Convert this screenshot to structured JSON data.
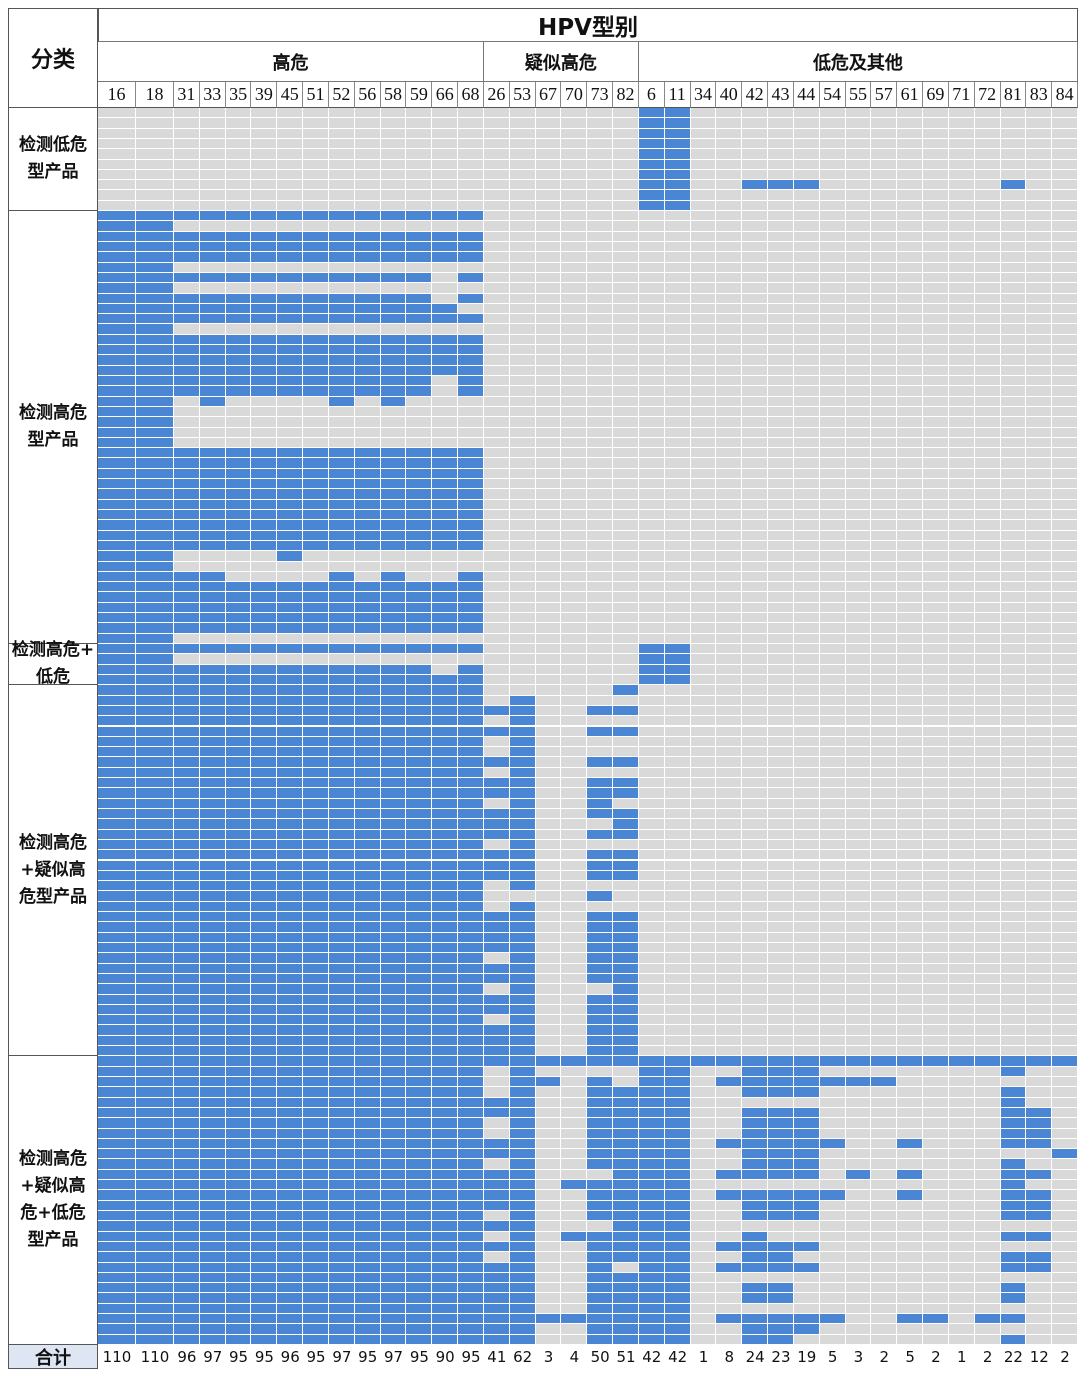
{
  "chart_data": {
    "type": "heatmap",
    "title": "HPV型别",
    "corner_label": "分类",
    "total_label": "合计",
    "colors": {
      "filled": "#4a86d4",
      "empty": "#d9d9d9"
    },
    "groups": [
      {
        "label": "高危",
        "types": [
          "16",
          "18",
          "31",
          "33",
          "35",
          "39",
          "45",
          "51",
          "52",
          "56",
          "58",
          "59",
          "66",
          "68"
        ]
      },
      {
        "label": "疑似高危",
        "types": [
          "26",
          "53",
          "67",
          "70",
          "73",
          "82"
        ]
      },
      {
        "label": "低危及其他",
        "types": [
          "6",
          "11",
          "34",
          "40",
          "42",
          "43",
          "44",
          "54",
          "55",
          "57",
          "61",
          "69",
          "71",
          "72",
          "81",
          "83",
          "84"
        ]
      }
    ],
    "columns": [
      "16",
      "18",
      "31",
      "33",
      "35",
      "39",
      "45",
      "51",
      "52",
      "56",
      "58",
      "59",
      "66",
      "68",
      "26",
      "53",
      "67",
      "70",
      "73",
      "82",
      "6",
      "11",
      "34",
      "40",
      "42",
      "43",
      "44",
      "54",
      "55",
      "57",
      "61",
      "69",
      "71",
      "72",
      "81",
      "83",
      "84"
    ],
    "totals": [
      "110",
      "110",
      "96",
      "97",
      "95",
      "95",
      "96",
      "95",
      "97",
      "95",
      "97",
      "95",
      "90",
      "95",
      "41",
      "62",
      "3",
      "4",
      "50",
      "51",
      "42",
      "42",
      "1",
      "8",
      "24",
      "23",
      "19",
      "5",
      "3",
      "2",
      "5",
      "2",
      "1",
      "2",
      "22",
      "12",
      "2"
    ],
    "categories": [
      {
        "label": "检测低危\n型产品",
        "rows": [
          "00000000000000|000000|11000000000000000",
          "00000000000000|000000|11000000000000000",
          "00000000000000|000000|11000000000000000",
          "00000000000000|000000|11000000000000000",
          "00000000000000|000000|11000000000000000",
          "00000000000000|000000|11000000000000000",
          "00000000000000|000000|11000000000000000",
          "00000000000000|000000|11001110000000100",
          "00000000000000|000000|11000000000000000",
          "00000000000000|000000|11000000000000000"
        ]
      },
      {
        "label": "检测高危\n型产品",
        "rows": [
          "11111111111111|000000|00000000000000000",
          "11000000000000|000000|00000000000000000",
          "11111111111111|000000|00000000000000000",
          "11111111111111|000000|00000000000000000",
          "11111111111111|000000|00000000000000000",
          "11000000000000|000000|00000000000000000",
          "11111111111101|000000|00000000000000000",
          "11000000000000|000000|00000000000000000",
          "11111111111101|000000|00000000000000000",
          "11111111111110|000000|00000000000000000",
          "11111111111111|000000|00000000000000000",
          "11000000000000|000000|00000000000000000",
          "11111111111111|000000|00000000000000000",
          "11111111111111|000000|00000000000000000",
          "11111111111111|000000|00000000000000000",
          "11111111111111|000000|00000000000000000",
          "11111111111101|000000|00000000000000000",
          "11111111111101|000000|00000000000000000",
          "11010000101000|000000|00000000000000000",
          "11000000000000|000000|00000000000000000",
          "11000000000000|000000|00000000000000000",
          "11000000000000|000000|00000000000000000",
          "11000000000000|000000|00000000000000000",
          "11111111111111|000000|00000000000000000",
          "11111111111111|000000|00000000000000000",
          "11111111111111|000000|00000000000000000",
          "11111111111111|000000|00000000000000000",
          "11111111111111|000000|00000000000000000",
          "11111111111111|000000|00000000000000000",
          "11111111111111|000000|00000000000000000",
          "11111111111111|000000|00000000000000000",
          "11111111111111|000000|00000000000000000",
          "11111111111111|000000|00000000000000000",
          "11000010000000|000000|00000000000000000",
          "11000000000000|000000|00000000000000000",
          "11110000101001|000000|00000000000000000",
          "11111111111111|000000|00000000000000000",
          "11111111111111|000000|00000000000000000",
          "11111111111111|000000|00000000000000000",
          "11111111111111|000000|00000000000000000",
          "11111111111111|000000|00000000000000000",
          "11000000000000|000000|00000000000000000"
        ]
      },
      {
        "label": "检测高危+\n低危",
        "rows": [
          "11111111111111|000000|11000000000000000",
          "11000000000000|000000|11000000000000000",
          "11111111111101|000000|11000000000000000",
          "11111111111111|000000|11000000000000000"
        ]
      },
      {
        "label": "检测高危\n+疑似高\n危型产品",
        "rows": [
          "11111111111111|000001|00000000000000000",
          "11111111111111|010000|00000000000000000",
          "11111111111111|110011|00000000000000000",
          "11111111111111|010000|00000000000000000",
          "11111111111111|110011|00000000000000000",
          "11111111111111|010000|00000000000000000",
          "11111111111111|010000|00000000000000000",
          "11111111111111|110011|00000000000000000",
          "11111111111111|010000|00000000000000000",
          "11111111111111|110011|00000000000000000",
          "11111111111111|110011|00000000000000000",
          "11111111111111|010010|00000000000000000",
          "11111111111111|110011|00000000000000000",
          "11111111111111|110001|00000000000000000",
          "11111111111111|110011|00000000000000000",
          "11111111111111|010000|00000000000000000",
          "11111111111111|110011|00000000000000000",
          "11111111111111|110011|00000000000000000",
          "11111111111111|110011|00000000000000000",
          "11111111111111|010000|00000000000000000",
          "11111111111111|000010|00000000000000000",
          "11111111111111|010000|00000000000000000",
          "11111111111111|110011|00000000000000000",
          "11111111111111|110011|00000000000000000",
          "11111111111111|110011|00000000000000000",
          "11111111111111|110011|00000000000000000",
          "11111111111111|010011|00000000000000000",
          "11111111111111|110011|00000000000000000",
          "11111111111111|110011|00000000000000000",
          "11111111111111|010001|00000000000000000",
          "11111111111111|110011|00000000000000000",
          "11111111111111|110011|00000000000000000",
          "11111111111111|010011|00000000000000000",
          "11111111111111|110011|00000000000000000",
          "11111111111111|110011|00000000000000000",
          "11111111111111|110011|00000000000000000"
        ]
      },
      {
        "label": "检测高危\n+疑似高\n危+低危\n型产品",
        "rows": [
          "11111111111111|111111|11111111111111111",
          "11111111111111|010000|11001110000000100",
          "11111111111111|011010|11011111110000000",
          "11111111111111|010011|11001110000000100",
          "11111111111111|110011|11000000000000100",
          "11111111111111|110011|11001110000000110",
          "11111111111111|010011|11001110000000110",
          "11111111111111|010011|11001110000000110",
          "11111111111111|110011|11011111001000110",
          "11111111111111|110011|11001110000000001",
          "11111111111111|010011|11001110000000100",
          "11111111111111|110001|11011110101000110",
          "11111111111111|110111|11000000000000100",
          "11111111111111|110011|11011111001000110",
          "11111111111111|110011|11001110000000110",
          "11111111111111|010011|11001110000000110",
          "11111111111111|110001|11000000000000000",
          "11111111111111|010111|11001000000000110",
          "11111111111111|110011|11011110000000000",
          "11111111111111|010011|11001100000000110",
          "11111111111111|110010|11011110000000110",
          "11111111111111|110011|11000000000000000",
          "11111111111111|110011|11001100000000100",
          "11111111111111|110011|11001100000000100",
          "11111111111111|110011|11000000000000000",
          "11111111111111|111111|11011111001101100",
          "11111111111111|110011|11001110000000000",
          "11111111111111|110011|11001100000000100"
        ]
      }
    ]
  }
}
